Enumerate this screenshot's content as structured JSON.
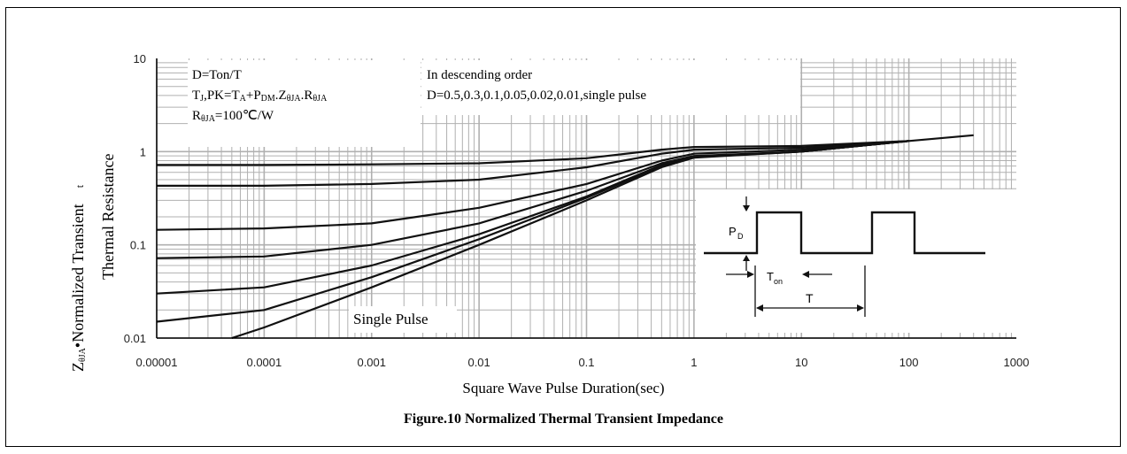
{
  "chart_data": {
    "type": "line",
    "title": "Figure.10 Normalized Thermal Transient Impedance",
    "xlabel": "Square Wave Pulse Duration(sec)",
    "ylabel": "ZθJA•Normalized Transient Thermal Resistance",
    "ylabel_parts": {
      "outer_main": "Z",
      "outer_sub": "θJA",
      "outer_rest": "•Normalized Transient",
      "inner": "Thermal Resistance"
    },
    "x_scale": "log",
    "y_scale": "log",
    "xlim": [
      1e-05,
      1000
    ],
    "ylim": [
      0.01,
      10
    ],
    "x_tick_labels": [
      "0.00001",
      "0.0001",
      "0.001",
      "0.01",
      "0.1",
      "1",
      "10",
      "100",
      "1000"
    ],
    "y_tick_labels": [
      "10",
      "1",
      "0.1",
      "0.01"
    ],
    "x_ticks": [
      1e-05,
      0.0001,
      0.001,
      0.01,
      0.1,
      1,
      10,
      100,
      1000
    ],
    "y_ticks": [
      10,
      1,
      0.1,
      0.01
    ],
    "grid": true,
    "series": [
      {
        "name": "D=0.5",
        "x": [
          1e-05,
          0.0001,
          0.001,
          0.01,
          0.1,
          0.5,
          1,
          10,
          100,
          400
        ],
        "y": [
          0.72,
          0.72,
          0.73,
          0.75,
          0.85,
          1.05,
          1.12,
          1.15,
          1.3,
          1.5
        ]
      },
      {
        "name": "D=0.3",
        "x": [
          1e-05,
          0.0001,
          0.001,
          0.01,
          0.1,
          0.5,
          1,
          10,
          100
        ],
        "y": [
          0.43,
          0.43,
          0.45,
          0.5,
          0.68,
          0.95,
          1.05,
          1.1,
          1.3
        ]
      },
      {
        "name": "D=0.1",
        "x": [
          1e-05,
          0.0001,
          0.001,
          0.01,
          0.1,
          0.5,
          1,
          10,
          100
        ],
        "y": [
          0.145,
          0.15,
          0.17,
          0.25,
          0.45,
          0.8,
          0.95,
          1.05,
          1.3
        ]
      },
      {
        "name": "D=0.05",
        "x": [
          1e-05,
          0.0001,
          0.001,
          0.01,
          0.1,
          0.5,
          1,
          10,
          100
        ],
        "y": [
          0.072,
          0.075,
          0.1,
          0.17,
          0.38,
          0.75,
          0.9,
          1.0,
          1.3
        ]
      },
      {
        "name": "D=0.02",
        "x": [
          1e-05,
          0.0001,
          0.001,
          0.01,
          0.1,
          0.5,
          1,
          10,
          100
        ],
        "y": [
          0.03,
          0.035,
          0.06,
          0.13,
          0.33,
          0.72,
          0.88,
          1.0,
          1.3
        ]
      },
      {
        "name": "D=0.01",
        "x": [
          1e-05,
          0.0001,
          0.001,
          0.01,
          0.1,
          0.5,
          1,
          10,
          100
        ],
        "y": [
          0.015,
          0.02,
          0.045,
          0.115,
          0.32,
          0.7,
          0.87,
          1.0,
          1.3
        ]
      },
      {
        "name": "single pulse",
        "x": [
          5e-05,
          0.0001,
          0.001,
          0.01,
          0.1,
          0.5,
          1,
          10,
          100
        ],
        "y": [
          0.01,
          0.013,
          0.035,
          0.1,
          0.3,
          0.68,
          0.86,
          1.0,
          1.3
        ]
      }
    ],
    "annotations": {
      "box_left": {
        "line1": "D=Ton/T",
        "line2": {
          "a": "T",
          "a_sub": "J",
          "b": ",PK=T",
          "b_sub": "A",
          "c": "+P",
          "c_sub": "DM",
          "d": ".Z",
          "d_sub": "θJA",
          "e": ".R",
          "e_sub": "θJA"
        },
        "line3": {
          "a": "R",
          "a_sub": "θJA",
          "b": "=100℃/W"
        }
      },
      "box_right": {
        "line1": "In descending order",
        "line2": "D=0.5,0.3,0.1,0.05,0.02,0.01,single pulse"
      },
      "single_pulse_label": "Single Pulse",
      "stray_mark": "t",
      "inset": {
        "pd": "P",
        "pd_sub": "D",
        "ton": "T",
        "ton_sub": "on",
        "t": "T"
      }
    },
    "colors": {
      "line": "#111111",
      "grid": "#b0b0b0",
      "background": "#ffffff"
    }
  }
}
